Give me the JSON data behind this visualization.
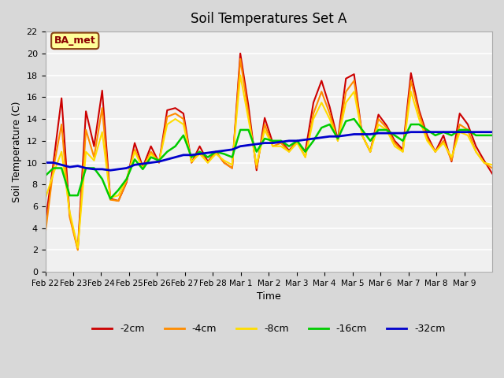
{
  "title": "Soil Temperatures Set A",
  "xlabel": "Time",
  "ylabel": "Soil Temperature (C)",
  "annotation_text": "BA_met",
  "annotation_color": "#8b0000",
  "annotation_bg": "#ffff99",
  "annotation_border": "#8b4513",
  "ylim": [
    0,
    22
  ],
  "yticks": [
    0,
    2,
    4,
    6,
    8,
    10,
    12,
    14,
    16,
    18,
    20,
    22
  ],
  "series": {
    "-2cm": {
      "color": "#cc0000",
      "lw": 1.5,
      "values": [
        4.5,
        10.0,
        15.9,
        5.2,
        2.1,
        14.7,
        11.5,
        16.6,
        6.7,
        6.5,
        8.2,
        11.8,
        9.6,
        11.5,
        10.0,
        14.8,
        15.0,
        14.5,
        10.0,
        11.5,
        10.1,
        11.0,
        10.0,
        9.5,
        20.0,
        15.2,
        9.3,
        14.1,
        11.8,
        12.0,
        11.1,
        12.0,
        11.0,
        15.5,
        17.5,
        15.1,
        12.1,
        17.7,
        18.1,
        12.5,
        11.0,
        14.4,
        13.4,
        12.0,
        11.2,
        18.2,
        14.8,
        12.5,
        11.0,
        12.5,
        10.1,
        14.5,
        13.5,
        11.5,
        10.2,
        9.0
      ]
    },
    "-4cm": {
      "color": "#ff8c00",
      "lw": 1.5,
      "values": [
        3.5,
        9.5,
        13.5,
        5.0,
        2.0,
        13.0,
        10.5,
        15.0,
        6.6,
        6.5,
        8.3,
        11.2,
        9.5,
        11.0,
        10.0,
        14.2,
        14.5,
        14.0,
        10.0,
        11.0,
        10.0,
        11.0,
        10.0,
        9.5,
        19.5,
        14.5,
        9.5,
        13.5,
        11.5,
        11.8,
        11.0,
        12.0,
        10.5,
        14.5,
        16.5,
        14.5,
        12.0,
        16.5,
        17.5,
        12.5,
        11.0,
        14.0,
        13.2,
        11.8,
        11.0,
        17.5,
        14.5,
        12.2,
        11.0,
        12.0,
        10.2,
        13.5,
        13.0,
        11.0,
        10.0,
        9.5
      ]
    },
    "-8cm": {
      "color": "#ffdd00",
      "lw": 1.5,
      "values": [
        6.7,
        9.0,
        11.0,
        5.5,
        2.2,
        11.0,
        10.2,
        12.8,
        6.8,
        7.0,
        8.5,
        11.0,
        9.5,
        10.8,
        10.1,
        13.5,
        14.0,
        13.5,
        10.1,
        10.8,
        10.0,
        10.8,
        10.2,
        9.8,
        18.0,
        14.0,
        9.8,
        13.0,
        11.5,
        11.5,
        11.0,
        11.8,
        10.5,
        14.0,
        15.5,
        14.0,
        12.0,
        15.5,
        16.5,
        12.5,
        11.0,
        13.5,
        13.0,
        11.5,
        11.0,
        16.5,
        14.0,
        12.0,
        11.0,
        11.8,
        10.5,
        12.8,
        12.5,
        11.0,
        10.0,
        9.8
      ]
    },
    "-16cm": {
      "color": "#00cc00",
      "lw": 1.8,
      "values": [
        8.8,
        9.5,
        9.5,
        7.0,
        7.0,
        9.5,
        9.5,
        8.5,
        6.7,
        7.5,
        8.5,
        10.3,
        9.4,
        10.5,
        10.2,
        11.0,
        11.5,
        12.5,
        10.5,
        11.0,
        10.5,
        11.0,
        10.8,
        10.5,
        13.0,
        13.0,
        11.0,
        12.2,
        12.0,
        12.0,
        11.5,
        12.0,
        11.0,
        12.0,
        13.2,
        13.5,
        12.2,
        13.8,
        14.0,
        13.0,
        12.0,
        13.0,
        13.0,
        12.5,
        12.0,
        13.5,
        13.5,
        13.0,
        12.5,
        12.8,
        12.5,
        13.0,
        13.0,
        12.5,
        12.5,
        12.5
      ]
    },
    "-32cm": {
      "color": "#0000cc",
      "lw": 2.0,
      "values": [
        10.0,
        10.0,
        9.8,
        9.6,
        9.7,
        9.5,
        9.4,
        9.4,
        9.3,
        9.4,
        9.5,
        9.8,
        9.9,
        10.0,
        10.1,
        10.3,
        10.5,
        10.7,
        10.7,
        10.8,
        10.9,
        11.0,
        11.1,
        11.2,
        11.5,
        11.6,
        11.7,
        11.8,
        11.8,
        11.9,
        12.0,
        12.0,
        12.1,
        12.2,
        12.3,
        12.4,
        12.4,
        12.5,
        12.6,
        12.6,
        12.6,
        12.7,
        12.7,
        12.7,
        12.7,
        12.8,
        12.8,
        12.8,
        12.8,
        12.8,
        12.8,
        12.8,
        12.8,
        12.8,
        12.8,
        12.8
      ]
    }
  },
  "x_tick_labels": [
    "Feb 22",
    "Feb 23",
    "Feb 24",
    "Feb 25",
    "Feb 26",
    "Feb 27",
    "Feb 28",
    "Mar 1",
    "Mar 2",
    "Mar 3",
    "Mar 4",
    "Mar 5",
    "Mar 6",
    "Mar 7",
    "Mar 8",
    "Mar 9"
  ],
  "legend_order": [
    "-2cm",
    "-4cm",
    "-8cm",
    "-16cm",
    "-32cm"
  ]
}
